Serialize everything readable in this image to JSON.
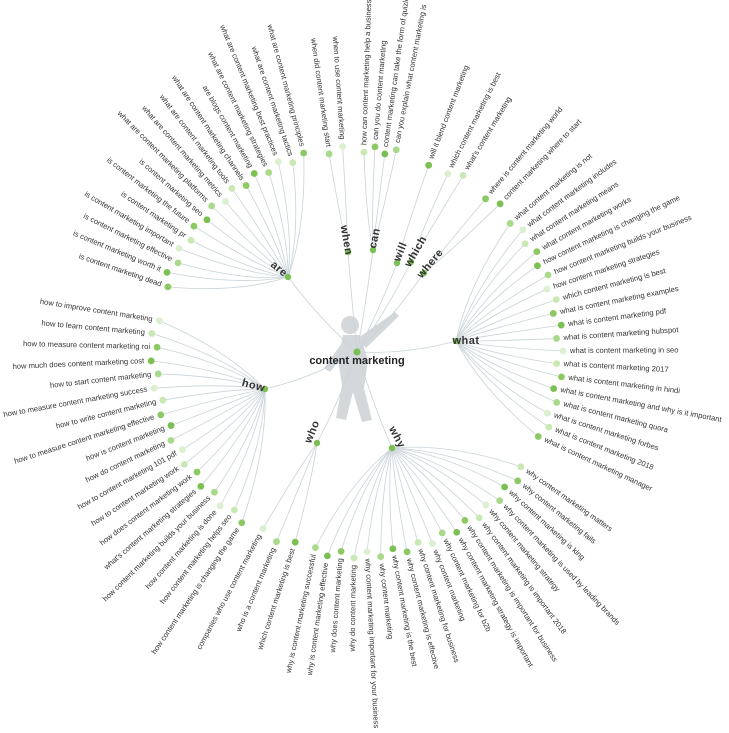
{
  "center": "content marketing",
  "branches": [
    {
      "label": "are",
      "leaves": [
        "is content marketing dead",
        "is content marketing worth it",
        "is content marketing effective",
        "is content marketing important",
        "is content marketing pr",
        "is content marketing the future",
        "is content marketing seo",
        "what are content marketing platforms",
        "what are content marketing metrics",
        "what are content marketing tools",
        "what are content marketing channels",
        "are blogs content marketing",
        "what are content marketing strategies",
        "what are content marketing best practices",
        "what are content marketing tactics",
        "what are content marketing principles"
      ]
    },
    {
      "label": "when",
      "leaves": [
        "when did content marketing start",
        "when to use content marketing"
      ]
    },
    {
      "label": "can",
      "leaves": [
        "how can content marketing help a business",
        "can you do content marketing",
        "content marketing can take the form of quizlet",
        "can you explain what content marketing is"
      ]
    },
    {
      "label": "will",
      "leaves": [
        "will it blend content marketing"
      ]
    },
    {
      "label": "which",
      "leaves": [
        "which content marketing is best",
        "what's content marketing"
      ]
    },
    {
      "label": "where",
      "leaves": [
        "where is content marketing world",
        "content marketing where to start"
      ]
    },
    {
      "label": "what",
      "leaves": [
        "what content marketing is not",
        "what content marketing includes",
        "what content marketing means",
        "what content marketing works",
        "how content marketing is changing the game",
        "how content marketing builds your business",
        "how content marketing strategies",
        "which content marketing is best",
        "what is content marketing examples",
        "what is content marketing pdf",
        "what is content marketing hubspot",
        "what is content marketing in seo",
        "what is content marketing 2017",
        "what is content marketing in hindi",
        "what is content marketing and why is it important",
        "what is content marketing quora",
        "what is content marketing forbes",
        "what is content marketing 2018",
        "what is content marketing manager"
      ]
    },
    {
      "label": "why",
      "leaves": [
        "why content marketing matters",
        "why content marketing fails",
        "why content marketing is king",
        "why content marketing is used by leading brands",
        "why content marketing strategy",
        "why content marketing is important 2018",
        "why content marketing is important for business",
        "why content marketing strategy is important",
        "why content marketing for b2b",
        "why content marketing",
        "why content marketing for business",
        "why content marketing is effective",
        "why content marketing is the best",
        "why content marketing",
        "why content marketing important for your business",
        "why do content marketing",
        "why does content marketing",
        "why is content marketing effective",
        "why is content marketing successful"
      ]
    },
    {
      "label": "who",
      "leaves": [
        "which content marketing is best",
        "who is a content marketing",
        "companies who use content marketing"
      ]
    },
    {
      "label": "how",
      "leaves": [
        "how to improve content marketing",
        "how to learn content marketing",
        "how to measure content marketing roi",
        "how much does content marketing cost",
        "how to start content marketing",
        "how to measure content marketing success",
        "how to write content marketing",
        "how to measure content marketing effective",
        "how is content marketing",
        "how do content marketing",
        "how to content marketing 101 pdf",
        "how to content marketing work",
        "how does content marketing work",
        "what's content marketing strategies",
        "how content marketing builds your business",
        "how content marketing is done",
        "how content marketing helps seo",
        "how content marketing is changing the game"
      ]
    }
  ]
}
